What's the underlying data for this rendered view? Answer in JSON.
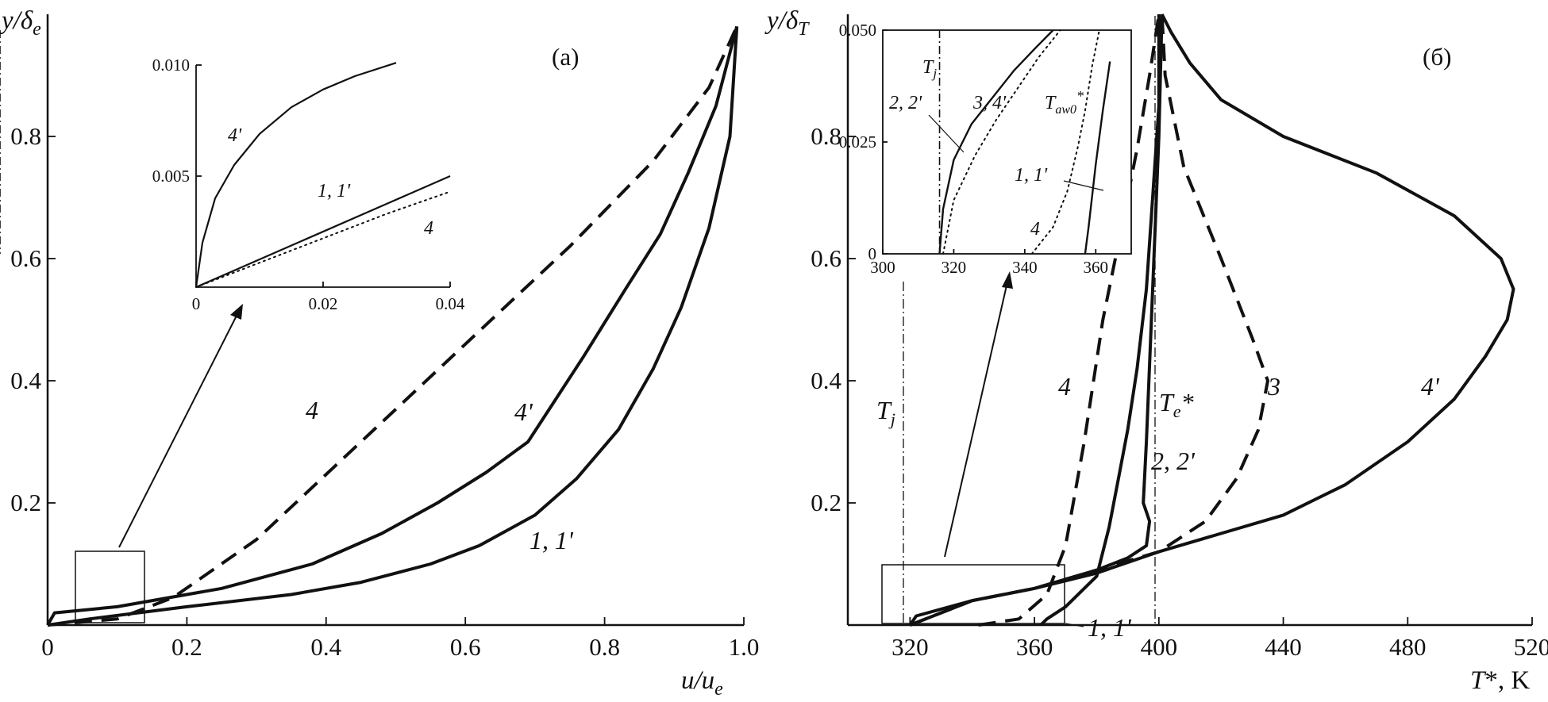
{
  "chart_data": [
    {
      "type": "line",
      "panel": "(a)",
      "ylabel": "y/δe",
      "xlabel": "u/ue",
      "xlim": [
        0,
        1.0
      ],
      "ylim": [
        0,
        1.0
      ],
      "xticks": [
        "0",
        "0.2",
        "0.4",
        "0.6",
        "0.8",
        "1.0"
      ],
      "yticks": [
        "0.2",
        "0.4",
        "0.6",
        "0.8"
      ],
      "series": [
        {
          "name": "1, 1'",
          "style": "solid",
          "x": [
            0.0,
            0.06,
            0.2,
            0.35,
            0.45,
            0.55,
            0.62,
            0.7,
            0.76,
            0.82,
            0.87,
            0.91,
            0.95,
            0.98,
            0.99
          ],
          "y": [
            0.0,
            0.01,
            0.03,
            0.05,
            0.07,
            0.1,
            0.13,
            0.18,
            0.24,
            0.32,
            0.42,
            0.52,
            0.65,
            0.8,
            0.98
          ]
        },
        {
          "name": "4'",
          "style": "solid",
          "x": [
            0.0,
            0.01,
            0.1,
            0.25,
            0.38,
            0.48,
            0.56,
            0.63,
            0.69,
            0.77,
            0.83,
            0.88,
            0.92,
            0.96,
            0.99
          ],
          "y": [
            0.0,
            0.02,
            0.03,
            0.06,
            0.1,
            0.15,
            0.2,
            0.25,
            0.3,
            0.44,
            0.55,
            0.64,
            0.74,
            0.85,
            0.98
          ]
        },
        {
          "name": "4",
          "style": "dashed",
          "x": [
            0.0,
            0.1,
            0.18,
            0.3,
            0.45,
            0.6,
            0.75,
            0.87,
            0.95,
            0.99
          ],
          "y": [
            0.0,
            0.01,
            0.045,
            0.14,
            0.3,
            0.46,
            0.62,
            0.76,
            0.88,
            0.98
          ]
        }
      ],
      "annotations": [
        "4",
        "4'",
        "1, 1'"
      ],
      "inset": {
        "xlim": [
          0,
          0.04
        ],
        "ylim": [
          0,
          0.01
        ],
        "xticks": [
          "0",
          "0.02",
          "0.04"
        ],
        "yticks": [
          "0.005",
          "0.010"
        ],
        "series": [
          {
            "name": "4'",
            "style": "solid",
            "x": [
              0.0,
              0.001,
              0.003,
              0.006,
              0.01,
              0.015,
              0.02,
              0.025,
              0.0315
            ],
            "y": [
              0.0,
              0.002,
              0.004,
              0.0055,
              0.0069,
              0.0081,
              0.0089,
              0.0095,
              0.0101
            ]
          },
          {
            "name": "1, 1'",
            "style": "solid",
            "x": [
              0.0,
              0.04
            ],
            "y": [
              0.0,
              0.005
            ]
          },
          {
            "name": "4",
            "style": "dotted",
            "x": [
              0.0,
              0.01,
              0.02,
              0.03,
              0.04
            ],
            "y": [
              0.0,
              0.0011,
              0.0022,
              0.0033,
              0.0043
            ]
          }
        ],
        "annotations": [
          "4'",
          "1, 1'",
          "4"
        ]
      }
    },
    {
      "type": "line",
      "panel": "(б)",
      "ylabel": "y/δT",
      "xlabel": "T*, K",
      "xlim": [
        300,
        520
      ],
      "ylim": [
        0,
        1.0
      ],
      "xticks": [
        "320",
        "360",
        "400",
        "440",
        "480",
        "520"
      ],
      "yticks": [
        "0.2",
        "0.4",
        "0.6",
        "0.8"
      ],
      "refs": {
        "Tj": 320,
        "Te*": 400
      },
      "series": [
        {
          "name": "1, 1'",
          "style": "solid",
          "x": [
            362,
            364,
            370,
            380,
            384,
            387,
            390,
            393,
            396,
            398,
            400,
            400
          ],
          "y": [
            0.0,
            0.01,
            0.03,
            0.08,
            0.16,
            0.24,
            0.32,
            0.42,
            0.55,
            0.7,
            0.85,
            1.0
          ]
        },
        {
          "name": "2, 2'",
          "style": "solid",
          "x": [
            320,
            322,
            340,
            360,
            380,
            390,
            396,
            397,
            395,
            396,
            398,
            400,
            401
          ],
          "y": [
            0.0,
            0.015,
            0.04,
            0.06,
            0.09,
            0.11,
            0.13,
            0.17,
            0.2,
            0.3,
            0.55,
            0.8,
            1.0
          ]
        },
        {
          "name": "3",
          "style": "dashed",
          "x": [
            320,
            340,
            360,
            380,
            400,
            415,
            425,
            432,
            435,
            430,
            420,
            408,
            402,
            401
          ],
          "y": [
            0.0,
            0.04,
            0.06,
            0.09,
            0.12,
            0.17,
            0.24,
            0.32,
            0.4,
            0.47,
            0.6,
            0.75,
            0.9,
            1.0
          ]
        },
        {
          "name": "4",
          "style": "dashed",
          "x": [
            342,
            355,
            364,
            370,
            376,
            382,
            388,
            393,
            397,
            400
          ],
          "y": [
            0.0,
            0.01,
            0.05,
            0.13,
            0.3,
            0.5,
            0.65,
            0.78,
            0.9,
            1.0
          ]
        },
        {
          "name": "4'",
          "style": "solid",
          "x": [
            320,
            340,
            360,
            380,
            400,
            420,
            440,
            460,
            480,
            495,
            505,
            512,
            514,
            510,
            495,
            470,
            440,
            420,
            410,
            404,
            401
          ],
          "y": [
            0.0,
            0.04,
            0.06,
            0.085,
            0.12,
            0.15,
            0.18,
            0.23,
            0.3,
            0.37,
            0.44,
            0.5,
            0.55,
            0.6,
            0.67,
            0.74,
            0.8,
            0.86,
            0.92,
            0.97,
            1.0
          ]
        }
      ],
      "annotations": [
        "4",
        "Te*",
        "3",
        "4'",
        "2, 2'",
        "1, 1'",
        "Tj"
      ],
      "inset": {
        "xlim": [
          300,
          370
        ],
        "ylim": [
          0,
          0.05
        ],
        "xticks": [
          "300",
          "320",
          "340",
          "360"
        ],
        "yticks": [
          "0",
          "0.025",
          "0.050"
        ],
        "refs": {
          "Tj": 316,
          "Taw0*": 356
        },
        "series": [
          {
            "name": "1, 1'",
            "style": "solid",
            "x": [
              357,
              358,
              360,
              362,
              364
            ],
            "y": [
              0.0,
              0.006,
              0.02,
              0.032,
              0.043
            ]
          },
          {
            "name": "2, 2', 3, 4'",
            "style": "solid",
            "x": [
              316,
              317,
              320,
              325,
              331,
              337,
              343,
              348
            ],
            "y": [
              0.0,
              0.01,
              0.021,
              0.029,
              0.035,
              0.041,
              0.046,
              0.05
            ]
          },
          {
            "name": "4",
            "style": "dotted",
            "x": [
              342,
              348,
              352,
              355,
              357,
              359,
              361
            ],
            "y": [
              0.0,
              0.006,
              0.014,
              0.024,
              0.032,
              0.042,
              0.05
            ]
          },
          {
            "name": "Taw0-dotted",
            "style": "dotted",
            "x": [
              317,
              320,
              326,
              332,
              338,
              344,
              350
            ],
            "y": [
              0.0,
              0.012,
              0.022,
              0.03,
              0.037,
              0.044,
              0.05
            ]
          }
        ],
        "annotations": [
          "Tj",
          "2, 2'",
          "3, 4'",
          "Taw0*",
          "1, 1'",
          "4"
        ]
      }
    }
  ]
}
